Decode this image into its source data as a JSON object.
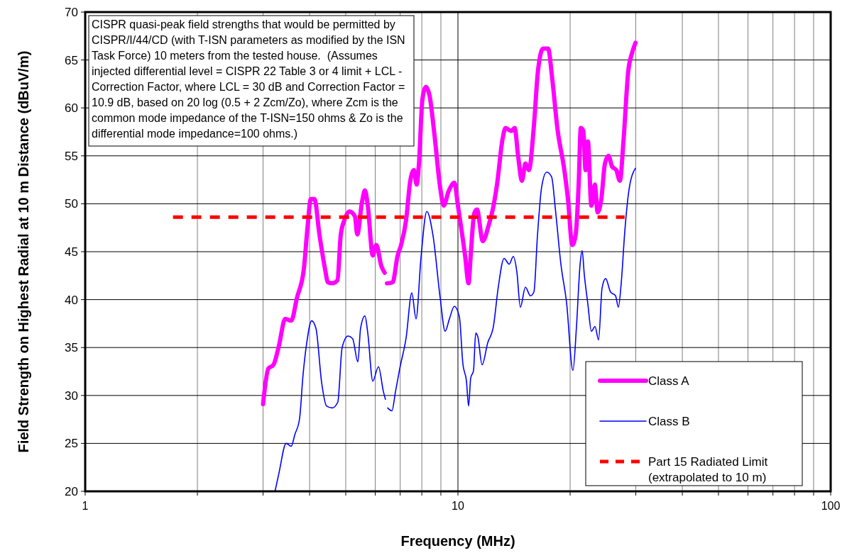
{
  "chart_data": {
    "type": "line",
    "xlabel": "Frequency (MHz)",
    "ylabel": "Field Strength on Highest Radial at 10 m Distance (dBuV/m)",
    "log": "x",
    "xlim": [
      1,
      100
    ],
    "xticks": [
      1,
      {
        "value": 2,
        "label": null
      },
      {
        "value": 3,
        "label": null
      },
      {
        "value": 4,
        "label": null
      },
      {
        "value": 5,
        "label": null
      },
      {
        "value": 6,
        "label": null
      },
      {
        "value": 7,
        "label": null
      },
      {
        "value": 8,
        "label": null
      },
      {
        "value": 9,
        "label": null
      },
      10,
      {
        "value": 20,
        "label": null
      },
      {
        "value": 30,
        "label": null
      },
      {
        "value": 40,
        "label": null
      },
      {
        "value": 50,
        "label": null
      },
      {
        "value": 60,
        "label": null
      },
      {
        "value": 70,
        "label": null
      },
      {
        "value": 80,
        "label": null
      },
      {
        "value": 90,
        "label": null
      },
      100
    ],
    "ylim": [
      20,
      70
    ],
    "yticks": [
      20,
      25,
      30,
      35,
      40,
      45,
      50,
      55,
      60,
      65,
      70
    ],
    "grid": true,
    "legend": "bottom right",
    "marker": "none",
    "annotations": [
      "CISPR quasi-peak field strengths that would be permitted by CISPR/I/44/CD (with T-ISN parameters as modified by the ISN Task Force) 10 meters from the tested house.  (Assumes injected differential level = CISPR 22 Table 3 or 4 limit + LCL - Correction Factor, where LCL = 30 dB and Correction Factor = 10.9 dB, based on 20 log (0.5 + 2 Zcm/Zo), where Zcm is the common mode impedance of the T-ISN=150 ohms & Zo is the differential mode impedance=100 ohms.)"
    ],
    "series": [
      {
        "name": "Class A",
        "color": "#ff00ff",
        "line_style": "solid",
        "x": [
          3.0,
          3.1,
          3.2,
          3.31,
          3.44,
          3.57,
          3.7,
          3.86,
          3.95,
          4.03,
          4.12,
          4.25,
          4.4,
          4.48,
          4.6,
          4.75,
          4.85,
          4.96,
          5.11,
          5.29,
          5.37,
          5.53,
          5.63,
          5.73,
          5.91,
          6.04,
          6.23,
          6.36,
          6.4,
          6.45,
          6.68,
          6.89,
          7.04,
          7.26,
          7.45,
          7.62,
          7.75,
          7.86,
          8.03,
          8.21,
          8.39,
          8.65,
          8.96,
          9.16,
          9.44,
          9.78,
          10.0,
          10.45,
          10.68,
          10.82,
          11.06,
          11.25,
          11.66,
          12.08,
          12.46,
          12.73,
          13.18,
          13.42,
          13.9,
          14.2,
          14.5,
          14.85,
          15.17,
          15.5,
          16.0,
          16.4,
          16.93,
          17.45,
          17.9,
          18.48,
          19.3,
          19.73,
          20.27,
          20.7,
          21.08,
          21.36,
          21.7,
          22.0,
          22.32,
          22.8,
          23.3,
          23.7,
          24.25,
          24.8,
          25.35,
          25.9,
          26.6,
          27.2,
          27.8,
          28.65,
          29.3,
          29.95
        ],
        "values": [
          29.1,
          32.8,
          33.2,
          35.2,
          38.0,
          37.8,
          40.2,
          43.2,
          47.6,
          50.5,
          50.5,
          46.8,
          43.2,
          41.8,
          41.7,
          42.0,
          46.8,
          48.3,
          49.2,
          48.7,
          46.8,
          50.2,
          51.4,
          49.8,
          44.6,
          45.7,
          43.5,
          42.8,
          null,
          41.7,
          41.8,
          44.6,
          45.7,
          48.3,
          52.4,
          53.5,
          52.0,
          54.2,
          60.9,
          62.2,
          61.3,
          57.2,
          51.7,
          49.8,
          51.3,
          52.2,
          49.8,
          44.6,
          41.7,
          44.6,
          49.0,
          49.4,
          46.1,
          47.7,
          49.8,
          52.0,
          56.8,
          57.9,
          57.6,
          57.9,
          55.0,
          52.4,
          54.2,
          53.5,
          58.3,
          63.9,
          66.2,
          66.2,
          63.1,
          57.9,
          53.5,
          50.5,
          45.7,
          46.8,
          52.0,
          57.9,
          57.6,
          53.5,
          56.5,
          49.8,
          52.0,
          49.1,
          50.5,
          54.2,
          55.0,
          53.9,
          53.5,
          52.4,
          56.5,
          63.9,
          65.7,
          66.8
        ]
      },
      {
        "name": "Class B",
        "color": "#0000ff",
        "line_style": "solid",
        "x": [
          3.23,
          3.31,
          3.46,
          3.57,
          3.65,
          3.76,
          3.84,
          3.93,
          4.05,
          4.16,
          4.31,
          4.44,
          4.6,
          4.76,
          4.89,
          5.07,
          5.22,
          5.39,
          5.48,
          5.63,
          5.73,
          5.91,
          6.12,
          6.31,
          6.39,
          6.43,
          6.48,
          6.65,
          6.8,
          6.98,
          7.26,
          7.52,
          7.72,
          7.96,
          8.25,
          8.58,
          8.96,
          9.24,
          9.49,
          9.78,
          10.09,
          10.31,
          10.54,
          10.68,
          10.82,
          11.01,
          11.16,
          11.31,
          11.61,
          12.02,
          12.45,
          12.82,
          13.3,
          13.72,
          14.08,
          14.39,
          14.71,
          15.17,
          15.65,
          15.99,
          16.34,
          16.78,
          17.3,
          17.84,
          18.24,
          18.89,
          19.56,
          20.35,
          20.8,
          21.27,
          21.54,
          21.83,
          22.32,
          22.81,
          23.32,
          23.84,
          24.36,
          24.9,
          25.67,
          26.48,
          26.94,
          27.42,
          28.03,
          28.78,
          29.93
        ],
        "values": [
          20.0,
          21.9,
          25.0,
          24.7,
          25.9,
          27.6,
          32.1,
          35.5,
          37.8,
          37.0,
          31.3,
          28.9,
          28.7,
          29.3,
          35.0,
          36.2,
          35.9,
          33.5,
          37.0,
          38.3,
          36.5,
          31.5,
          33.0,
          30.4,
          29.6,
          null,
          28.7,
          28.4,
          30.4,
          32.8,
          36.0,
          40.7,
          38.0,
          44.4,
          49.2,
          46.6,
          40.2,
          36.7,
          38.0,
          39.3,
          38.2,
          33.3,
          31.5,
          28.9,
          31.8,
          32.6,
          36.5,
          36.1,
          33.2,
          35.5,
          37.2,
          41.2,
          44.3,
          43.7,
          44.5,
          42.9,
          39.2,
          41.3,
          40.4,
          40.8,
          46.6,
          51.8,
          53.3,
          52.8,
          49.6,
          43.7,
          39.7,
          32.6,
          37.2,
          43.7,
          45.1,
          42.6,
          39.5,
          36.7,
          37.2,
          35.8,
          41.2,
          42.2,
          40.8,
          40.4,
          39.2,
          41.7,
          47.1,
          51.5,
          53.7
        ]
      },
      {
        "name": "Part 15 Radiated Limit (extrapolated to 10 m)",
        "color": "#ff0000",
        "line_style": "dashed",
        "x": [
          1.72,
          28.0
        ],
        "values": [
          48.6,
          48.6
        ]
      }
    ]
  }
}
